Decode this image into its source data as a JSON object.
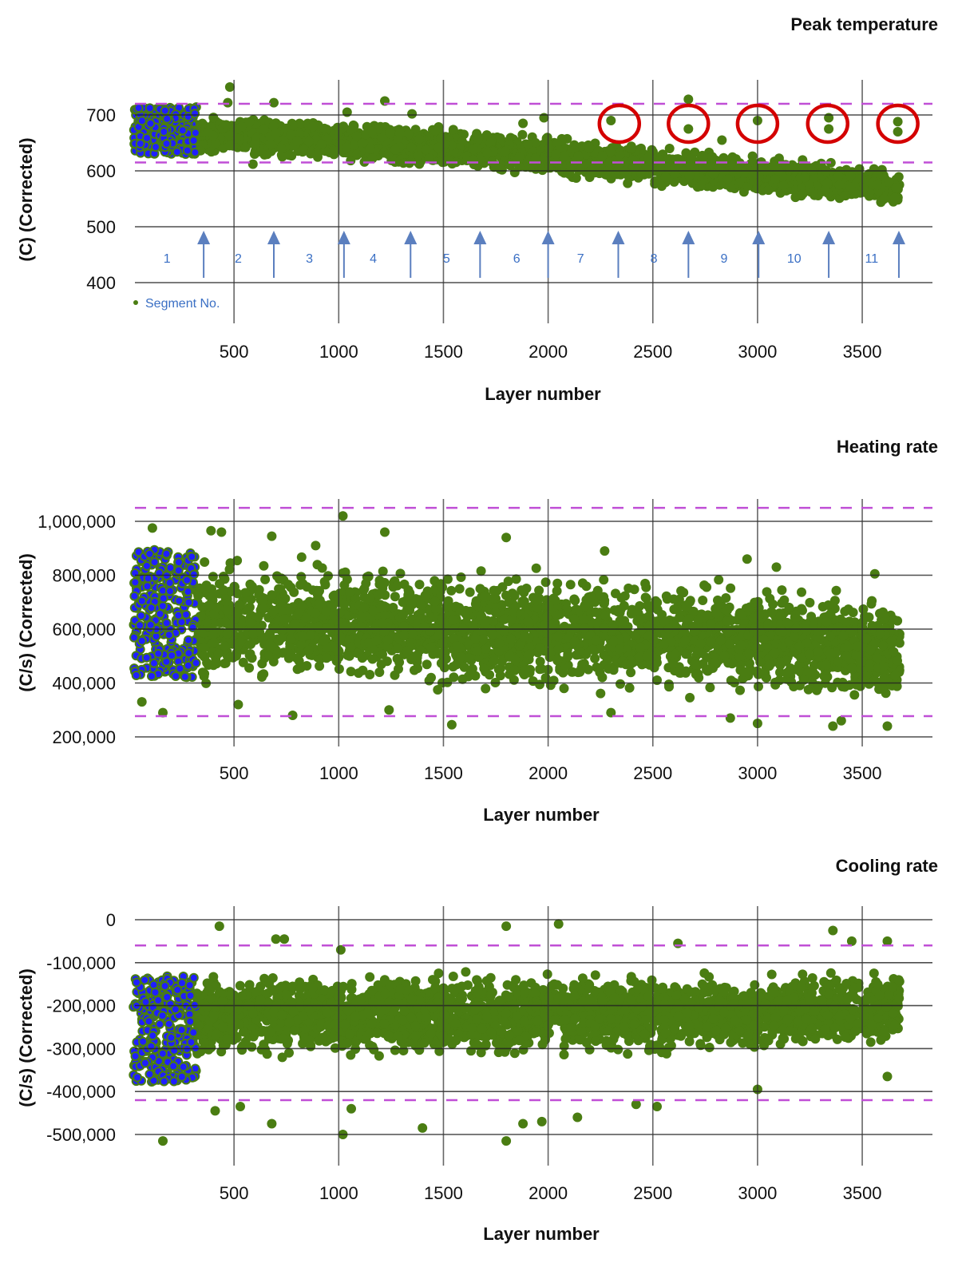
{
  "colors": {
    "green_points": "#4a7d12",
    "blue_points": "#1f1fff",
    "limit_lines": "#c04fd6",
    "arrows": "#5b7fbf",
    "highlight_circles": "#d40000",
    "segment_labels": "#3a6fc4"
  },
  "chart_data": [
    {
      "type": "scatter",
      "title": "Peak temperature",
      "xlabel": "Layer number",
      "ylabel": "(C) (Corrected)",
      "xlim": [
        20,
        3840
      ],
      "ylim": [
        335,
        765
      ],
      "xticks": [
        500,
        1000,
        1500,
        2000,
        2500,
        3000,
        3500
      ],
      "xtick_labels": [
        "500",
        "1000",
        "1500",
        "2000",
        "2500",
        "3000",
        "3500"
      ],
      "yticks": [
        400,
        500,
        600,
        700
      ],
      "ytick_labels": [
        "400",
        "500",
        "600",
        "700"
      ],
      "grid": true,
      "control_limits": [
        720,
        615
      ],
      "blue_segment": {
        "layers": [
          20,
          320
        ],
        "band": [
          630,
          715
        ]
      },
      "band_envelope": [
        [
          320,
          625,
          700
        ],
        [
          500,
          625,
          700
        ],
        [
          1000,
          615,
          690
        ],
        [
          1500,
          600,
          680
        ],
        [
          2000,
          590,
          662
        ],
        [
          2500,
          572,
          645
        ],
        [
          3000,
          556,
          632
        ],
        [
          3500,
          542,
          612
        ],
        [
          3680,
          530,
          600
        ]
      ],
      "outliers": [
        [
          480,
          750
        ],
        [
          470,
          722
        ],
        [
          690,
          722
        ],
        [
          1220,
          725
        ],
        [
          2670,
          728
        ],
        [
          1980,
          695
        ],
        [
          1880,
          685
        ],
        [
          2300,
          690
        ],
        [
          2670,
          675
        ],
        [
          3000,
          690
        ],
        [
          3340,
          695
        ],
        [
          3340,
          675
        ],
        [
          3670,
          688
        ],
        [
          3670,
          670
        ],
        [
          2830,
          655
        ],
        [
          2580,
          640
        ],
        [
          590,
          612
        ],
        [
          1040,
          705
        ],
        [
          1350,
          702
        ]
      ],
      "highlight_circles_at_layer": [
        2340,
        2670,
        3000,
        3335,
        3670
      ],
      "highlight_circles_value": 690,
      "segment_boundaries": [
        355,
        690,
        1025,
        1343,
        1675,
        2000,
        2335,
        2670,
        3005,
        3340,
        3675
      ],
      "segment_labels": [
        "1",
        "2",
        "3",
        "4",
        "5",
        "6",
        "7",
        "8",
        "9",
        "10",
        "11"
      ],
      "segment_label_layers": [
        180,
        520,
        860,
        1165,
        1515,
        1850,
        2155,
        2505,
        2840,
        3175,
        3545
      ],
      "legend": {
        "label": "Segment No.",
        "placement": "bottom-left"
      }
    },
    {
      "type": "scatter",
      "title": "Heating rate",
      "xlabel": "Layer number",
      "ylabel": "(C/s) (Corrected)",
      "xlim": [
        20,
        3840
      ],
      "ylim": [
        165000,
        1085000
      ],
      "xticks": [
        500,
        1000,
        1500,
        2000,
        2500,
        3000,
        3500
      ],
      "xtick_labels": [
        "500",
        "1000",
        "1500",
        "2000",
        "2500",
        "3000",
        "3500"
      ],
      "yticks": [
        200000,
        400000,
        600000,
        800000,
        1000000
      ],
      "ytick_labels": [
        "200,000",
        "400,000",
        "600,000",
        "800,000",
        "1,000,000"
      ],
      "grid": true,
      "control_limits": [
        1050000,
        277000
      ],
      "blue_segment": {
        "layers": [
          20,
          320
        ],
        "band": [
          420000,
          900000
        ]
      },
      "band_envelope": [
        [
          320,
          380000,
          860000
        ],
        [
          1000,
          390000,
          850000
        ],
        [
          1500,
          380000,
          830000
        ],
        [
          2000,
          370000,
          810000
        ],
        [
          2500,
          360000,
          800000
        ],
        [
          3000,
          340000,
          780000
        ],
        [
          3500,
          310000,
          740000
        ],
        [
          3680,
          320000,
          700000
        ]
      ],
      "outliers": [
        [
          1020,
          1020000
        ],
        [
          110,
          975000
        ],
        [
          390,
          965000
        ],
        [
          440,
          960000
        ],
        [
          1220,
          960000
        ],
        [
          1800,
          940000
        ],
        [
          680,
          945000
        ],
        [
          890,
          910000
        ],
        [
          2270,
          890000
        ],
        [
          2950,
          860000
        ],
        [
          3090,
          830000
        ],
        [
          3560,
          805000
        ],
        [
          1540,
          245000
        ],
        [
          3360,
          240000
        ],
        [
          3000,
          250000
        ],
        [
          3620,
          240000
        ],
        [
          160,
          290000
        ],
        [
          60,
          330000
        ],
        [
          520,
          320000
        ],
        [
          1240,
          300000
        ],
        [
          2300,
          290000
        ],
        [
          2870,
          270000
        ],
        [
          3400,
          260000
        ],
        [
          780,
          280000
        ]
      ]
    },
    {
      "type": "scatter",
      "title": "Cooling rate",
      "xlabel": "Layer number",
      "ylabel": "(C/s) (Corrected)",
      "xlim": [
        20,
        3840
      ],
      "ylim": [
        -560000,
        30000
      ],
      "xticks": [
        500,
        1000,
        1500,
        2000,
        2500,
        3000,
        3500
      ],
      "xtick_labels": [
        "500",
        "1000",
        "1500",
        "2000",
        "2500",
        "3000",
        "3500"
      ],
      "yticks": [
        0,
        -100000,
        -200000,
        -300000,
        -400000,
        -500000
      ],
      "ytick_labels": [
        "0",
        "-100,000",
        "-200,000",
        "-300,000",
        "-400,000",
        "-500,000"
      ],
      "grid": true,
      "control_limits": [
        -60000,
        -420000
      ],
      "blue_segment": {
        "layers": [
          20,
          320
        ],
        "band": [
          -380000,
          -130000
        ]
      },
      "band_envelope": [
        [
          320,
          -340000,
          -120000
        ],
        [
          1000,
          -330000,
          -120000
        ],
        [
          2000,
          -320000,
          -120000
        ],
        [
          3000,
          -310000,
          -120000
        ],
        [
          3680,
          -300000,
          -110000
        ]
      ],
      "outliers": [
        [
          430,
          -15000
        ],
        [
          1800,
          -15000
        ],
        [
          2050,
          -10000
        ],
        [
          3360,
          -25000
        ],
        [
          3450,
          -50000
        ],
        [
          3620,
          -50000
        ],
        [
          700,
          -45000
        ],
        [
          740,
          -45000
        ],
        [
          1010,
          -70000
        ],
        [
          2620,
          -55000
        ],
        [
          160,
          -515000
        ],
        [
          1800,
          -515000
        ],
        [
          1020,
          -500000
        ],
        [
          1400,
          -485000
        ],
        [
          680,
          -475000
        ],
        [
          1880,
          -475000
        ],
        [
          1970,
          -470000
        ],
        [
          2140,
          -460000
        ],
        [
          410,
          -445000
        ],
        [
          530,
          -435000
        ],
        [
          1060,
          -440000
        ],
        [
          2420,
          -430000
        ],
        [
          2520,
          -435000
        ],
        [
          3620,
          -365000
        ],
        [
          3000,
          -395000
        ]
      ]
    }
  ]
}
